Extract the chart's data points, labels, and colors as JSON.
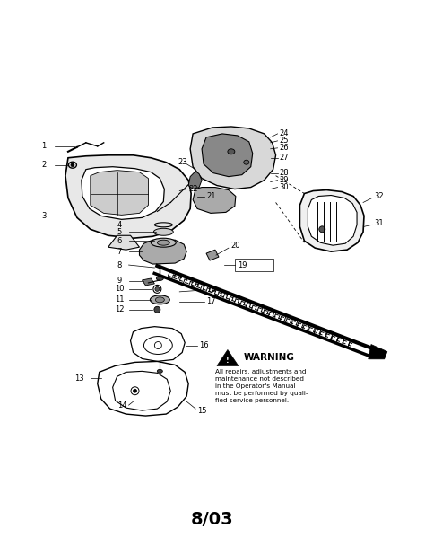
{
  "title": "8/03",
  "title_fontsize": 14,
  "title_fontweight": "bold",
  "background_color": "#ffffff",
  "warning_title": "WARNING",
  "warning_text": "All repairs, adjustments and\nmaintenance not described\nin the Operator's Manual\nmust be performed by quali-\nfied service personnel.",
  "fig_width": 4.74,
  "fig_height": 6.08,
  "dpi": 100
}
